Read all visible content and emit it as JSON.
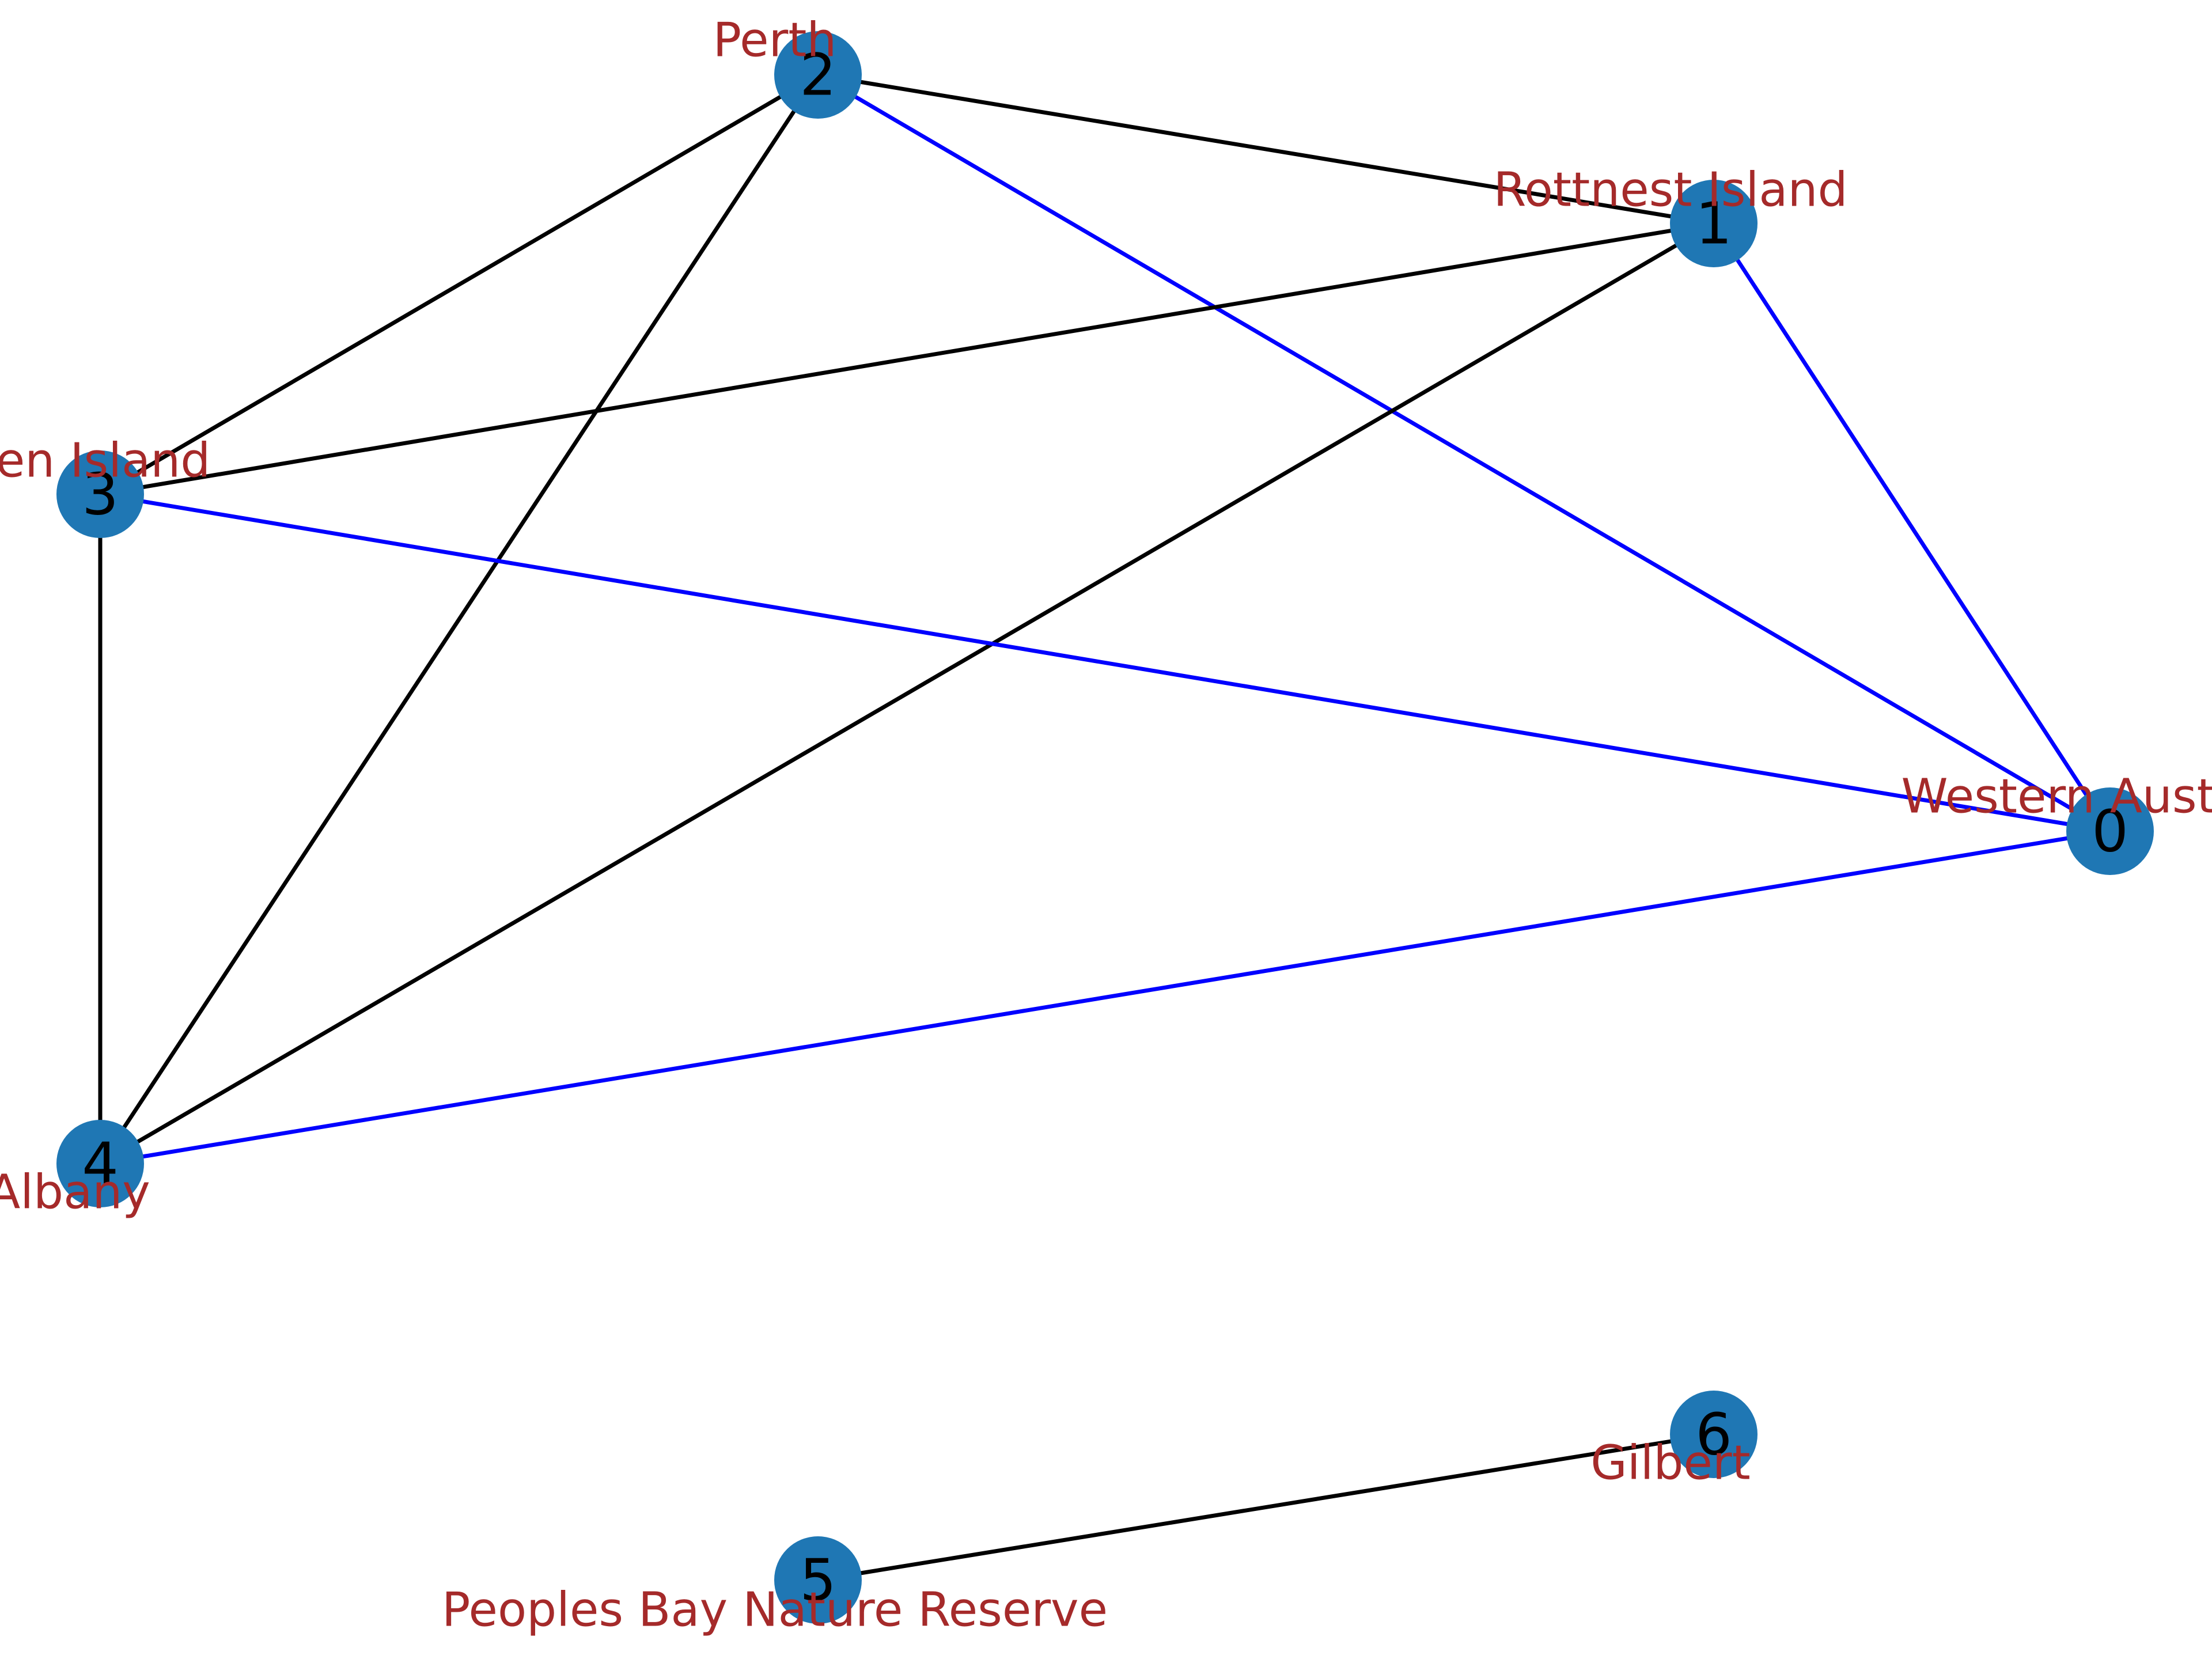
{
  "colors": {
    "node_fill": "#1f77b4",
    "edge_default": "#000000",
    "edge_highlight": "#0000ff",
    "label_text": "#a52a2a"
  },
  "nodes": [
    {
      "id": "0",
      "label": "Western Australia"
    },
    {
      "id": "1",
      "label": "Rottnest Island"
    },
    {
      "id": "2",
      "label": "Perth"
    },
    {
      "id": "3",
      "label": "Garden Island"
    },
    {
      "id": "4",
      "label": "Albany"
    },
    {
      "id": "5",
      "label": "Peoples Bay Nature Reserve"
    },
    {
      "id": "6",
      "label": "Gilbert"
    }
  ],
  "edges": [
    {
      "source": "2",
      "target": "1",
      "highlight": false
    },
    {
      "source": "2",
      "target": "3",
      "highlight": false
    },
    {
      "source": "2",
      "target": "4",
      "highlight": false
    },
    {
      "source": "2",
      "target": "0",
      "highlight": true
    },
    {
      "source": "1",
      "target": "3",
      "highlight": false
    },
    {
      "source": "1",
      "target": "4",
      "highlight": false
    },
    {
      "source": "1",
      "target": "0",
      "highlight": true
    },
    {
      "source": "3",
      "target": "4",
      "highlight": false
    },
    {
      "source": "3",
      "target": "0",
      "highlight": true
    },
    {
      "source": "4",
      "target": "0",
      "highlight": true
    },
    {
      "source": "5",
      "target": "6",
      "highlight": false
    }
  ]
}
